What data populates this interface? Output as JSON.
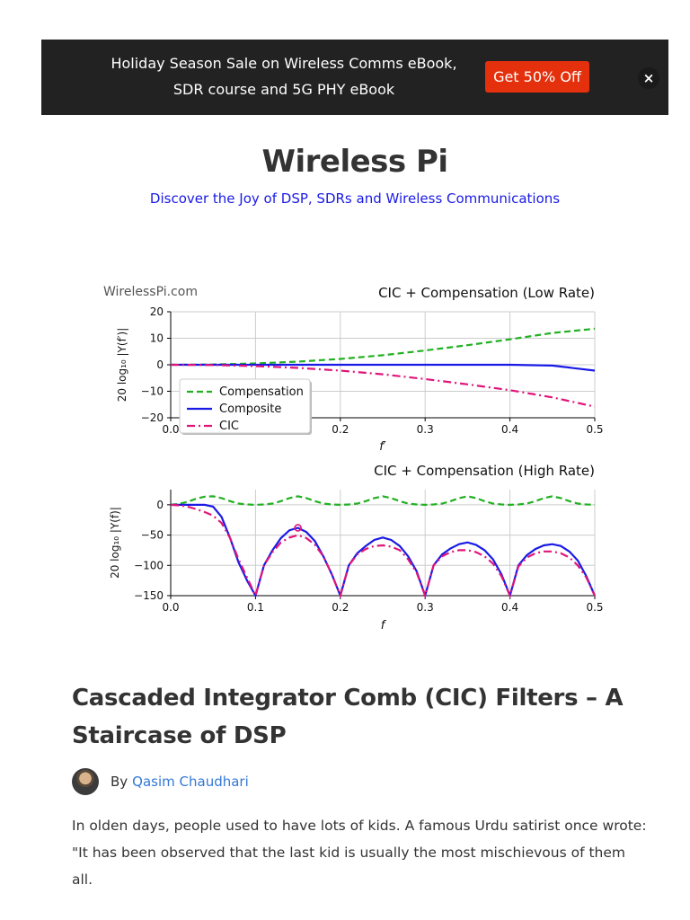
{
  "banner": {
    "text": "Holiday Season Sale on Wireless Comms eBook, SDR course and 5G PHY eBook",
    "button_label": "Get 50% Off",
    "close_label": "×"
  },
  "site": {
    "title": "Wireless Pi",
    "tagline": "Discover the Joy of DSP, SDRs and Wireless Communications"
  },
  "figure": {
    "watermark": "WirelessPi.com"
  },
  "chart_data": [
    {
      "type": "line",
      "title": "CIC + Compensation (Low Rate)",
      "xlabel": "f′",
      "ylabel": "20 log₁₀ |Y(f′)|",
      "xlim": [
        0.0,
        0.5
      ],
      "ylim": [
        -20,
        20
      ],
      "xticks": [
        "0.0",
        "0.1",
        "0.2",
        "0.3",
        "0.4",
        "0.5"
      ],
      "yticks": [
        "20",
        "10",
        "0",
        "−10",
        "−20"
      ],
      "grid": true,
      "legend": "lower-left",
      "x": [
        0.0,
        0.05,
        0.1,
        0.15,
        0.2,
        0.25,
        0.3,
        0.35,
        0.4,
        0.45,
        0.5
      ],
      "series": [
        {
          "name": "Compensation",
          "color": "#22b022",
          "dash": "dashed",
          "values": [
            0,
            0.1,
            0.5,
            1.2,
            2.2,
            3.6,
            5.4,
            7.4,
            9.6,
            12.0,
            13.6
          ]
        },
        {
          "name": "Composite",
          "color": "#1a1ae6",
          "dash": "solid",
          "values": [
            0,
            0,
            0,
            0,
            0,
            0,
            0,
            0,
            0,
            -0.3,
            -2.2
          ]
        },
        {
          "name": "CIC",
          "color": "#e0157a",
          "dash": "dashdot",
          "values": [
            0,
            -0.1,
            -0.5,
            -1.2,
            -2.2,
            -3.6,
            -5.4,
            -7.4,
            -9.6,
            -12.3,
            -15.8
          ]
        }
      ]
    },
    {
      "type": "line",
      "title": "CIC + Compensation (High Rate)",
      "xlabel": "f",
      "ylabel": "20 log₁₀ |Y(f)|",
      "xlim": [
        0.0,
        0.5
      ],
      "ylim": [
        -150,
        25
      ],
      "xticks": [
        "0.0",
        "0.1",
        "0.2",
        "0.3",
        "0.4",
        "0.5"
      ],
      "yticks": [
        "0",
        "−50",
        "−100",
        "−150"
      ],
      "grid": true,
      "x": [
        0.0,
        0.01,
        0.02,
        0.03,
        0.04,
        0.05,
        0.06,
        0.07,
        0.08,
        0.09,
        0.1,
        0.11,
        0.12,
        0.13,
        0.14,
        0.15,
        0.16,
        0.17,
        0.18,
        0.19,
        0.2,
        0.21,
        0.22,
        0.23,
        0.24,
        0.25,
        0.26,
        0.27,
        0.28,
        0.29,
        0.3,
        0.31,
        0.32,
        0.33,
        0.34,
        0.35,
        0.36,
        0.37,
        0.38,
        0.39,
        0.4,
        0.41,
        0.42,
        0.43,
        0.44,
        0.45,
        0.46,
        0.47,
        0.48,
        0.49,
        0.5
      ],
      "series": [
        {
          "name": "Compensation",
          "color": "#22b022",
          "dash": "dashed",
          "values": [
            0,
            1.5,
            5,
            10,
            13.5,
            14,
            11,
            6,
            2,
            0.5,
            0,
            0.5,
            2,
            6,
            11,
            14,
            11,
            6,
            2,
            0.5,
            0,
            0.5,
            2,
            6,
            11,
            14,
            11,
            6,
            2,
            0.5,
            0,
            0.5,
            2,
            6,
            11,
            14,
            11,
            6,
            2,
            0.5,
            0,
            0.5,
            2,
            6,
            11,
            14,
            11,
            6,
            2,
            0.5,
            0
          ]
        },
        {
          "name": "Composite",
          "color": "#1a1ae6",
          "dash": "solid",
          "values": [
            0,
            0,
            0,
            0,
            0,
            -3,
            -20,
            -55,
            -95,
            -125,
            -150,
            -100,
            -75,
            -55,
            -42,
            -38,
            -45,
            -60,
            -85,
            -115,
            -150,
            -100,
            -80,
            -68,
            -58,
            -54,
            -58,
            -68,
            -85,
            -110,
            -150,
            -100,
            -82,
            -72,
            -65,
            -62,
            -66,
            -75,
            -90,
            -115,
            -150,
            -100,
            -83,
            -73,
            -67,
            -65,
            -68,
            -77,
            -92,
            -118,
            -150
          ]
        },
        {
          "name": "CIC",
          "color": "#e0157a",
          "dash": "dashdot",
          "values": [
            0,
            -1,
            -3,
            -7,
            -12,
            -18,
            -30,
            -55,
            -90,
            -120,
            -150,
            -100,
            -78,
            -62,
            -54,
            -50,
            -55,
            -66,
            -85,
            -115,
            -150,
            -100,
            -82,
            -73,
            -68,
            -67,
            -69,
            -75,
            -90,
            -112,
            -150,
            -100,
            -85,
            -78,
            -75,
            -75,
            -78,
            -85,
            -97,
            -118,
            -150,
            -102,
            -87,
            -80,
            -77,
            -77,
            -80,
            -87,
            -100,
            -120,
            -150
          ]
        }
      ],
      "annotations": [
        {
          "shape": "circle",
          "x": 0.15,
          "y": -38,
          "color": "#e0157a"
        }
      ]
    }
  ],
  "post": {
    "title": "Cascaded Integrator Comb (CIC) Filters – A Staircase of DSP",
    "by_label": "By",
    "author": "Qasim Chaudhari",
    "body": "In olden days, people used to have lots of kids. A famous Urdu satirist once wrote: \"It has been observed that the last kid is usually the most mischievous of them all."
  }
}
